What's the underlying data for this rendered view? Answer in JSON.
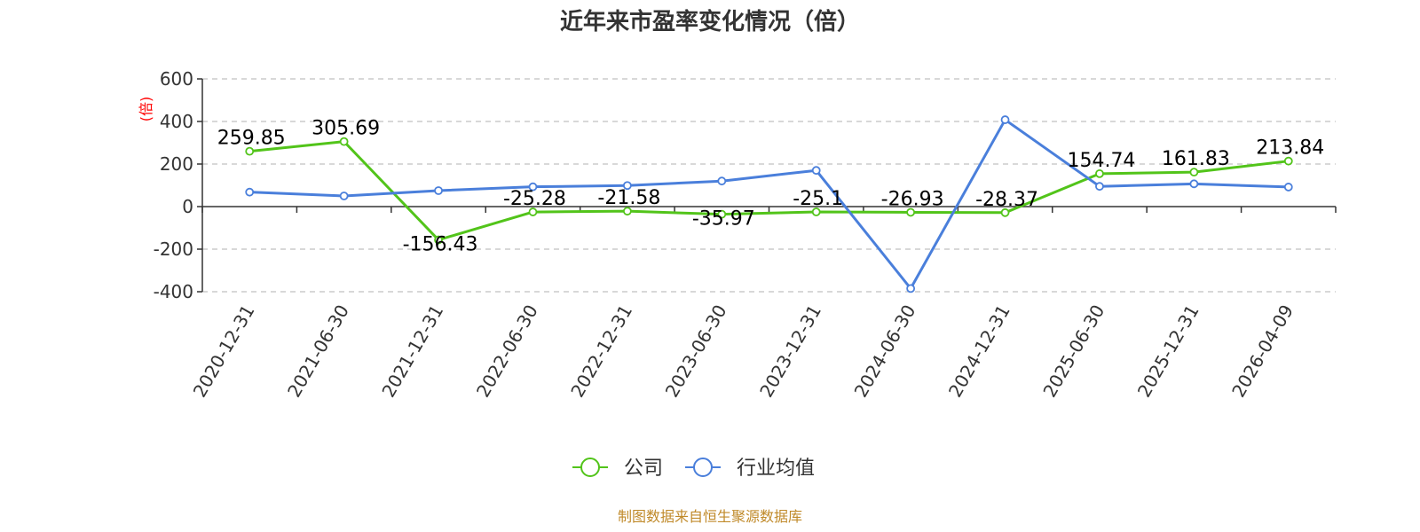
{
  "chart_data": {
    "type": "line",
    "title": "近年来市盈率变化情况（倍）",
    "ylabel": "(倍)",
    "ylim": [
      -400,
      600
    ],
    "yticks": [
      600,
      400,
      200,
      0,
      -200,
      -400
    ],
    "categories": [
      "2020-12-31",
      "2021-06-30",
      "2021-12-31",
      "2022-06-30",
      "2022-12-31",
      "2023-06-30",
      "2023-12-31",
      "2024-06-30",
      "2024-12-31",
      "2025-06-30",
      "2025-12-31",
      "2026-04-09"
    ],
    "series": [
      {
        "name": "公司",
        "color": "#52c41a",
        "values": [
          259.85,
          305.69,
          -156.43,
          -25.28,
          -21.58,
          -35.97,
          -25.1,
          -26.93,
          -28.37,
          154.74,
          161.83,
          213.84
        ],
        "labels": [
          "259.85",
          "305.69",
          "-156.43",
          "-25.28",
          "-21.58",
          "-35.97",
          "-25.1",
          "-26.93",
          "-28.37",
          "154.74",
          "161.83",
          "213.84"
        ]
      },
      {
        "name": "行业均值",
        "color": "#4a7fdb",
        "values": [
          68,
          50,
          75,
          93,
          99,
          120,
          170,
          -385,
          408,
          95,
          107,
          92
        ]
      }
    ],
    "grid": true,
    "legend": "bottom-center",
    "source": "制图数据来自恒生聚源数据库"
  }
}
